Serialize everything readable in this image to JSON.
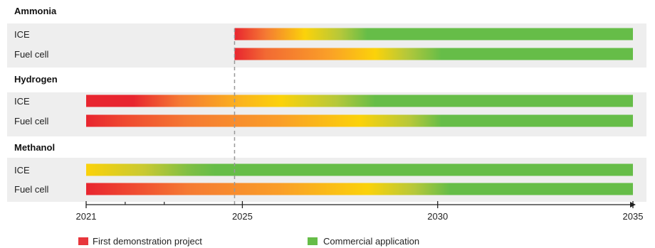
{
  "chart_data": {
    "type": "gantt-gradient",
    "title": "",
    "xlabel": "",
    "ylabel": "",
    "x_range": [
      2021,
      2035
    ],
    "x_ticks": [
      2021,
      2025,
      2030,
      2035
    ],
    "x_tick_labels": [
      "2021",
      "2025",
      "2030",
      "2035"
    ],
    "x_minor_ticks": [
      2022,
      2023
    ],
    "reference_line_x": 2024.8,
    "groups": [
      {
        "name": "Ammonia",
        "rows": [
          {
            "label": "ICE",
            "start": 2024.8,
            "end": 2035,
            "stops": [
              [
                2024.8,
                "#e8252f"
              ],
              [
                2025.6,
                "#f57a33"
              ],
              [
                2026.6,
                "#fbd20a"
              ],
              [
                2027.5,
                "#b6c83a"
              ],
              [
                2028.2,
                "#66bd48"
              ],
              [
                2035,
                "#66bd48"
              ]
            ]
          },
          {
            "label": "Fuel cell",
            "start": 2024.8,
            "end": 2035,
            "stops": [
              [
                2024.8,
                "#e8252f"
              ],
              [
                2025.6,
                "#f26a33"
              ],
              [
                2027.2,
                "#fa9f28"
              ],
              [
                2028.4,
                "#fbd20a"
              ],
              [
                2029.2,
                "#b6c83a"
              ],
              [
                2030.1,
                "#66bd48"
              ],
              [
                2035,
                "#66bd48"
              ]
            ]
          }
        ]
      },
      {
        "name": "Hydrogen",
        "rows": [
          {
            "label": "ICE",
            "start": 2021,
            "end": 2035,
            "stops": [
              [
                2021,
                "#e8252f"
              ],
              [
                2022.2,
                "#e8252f"
              ],
              [
                2023.4,
                "#f57a33"
              ],
              [
                2025.0,
                "#fbb51c"
              ],
              [
                2026.0,
                "#fbd20a"
              ],
              [
                2027.4,
                "#b6c83a"
              ],
              [
                2028.4,
                "#66bd48"
              ],
              [
                2035,
                "#66bd48"
              ]
            ]
          },
          {
            "label": "Fuel cell",
            "start": 2021,
            "end": 2035,
            "stops": [
              [
                2021,
                "#e8252f"
              ],
              [
                2022.0,
                "#ef4a31"
              ],
              [
                2023.6,
                "#f57a33"
              ],
              [
                2026.0,
                "#fa9f28"
              ],
              [
                2028.0,
                "#fbd20a"
              ],
              [
                2029.3,
                "#b6c83a"
              ],
              [
                2030.1,
                "#66bd48"
              ],
              [
                2035,
                "#66bd48"
              ]
            ]
          }
        ]
      },
      {
        "name": "Methanol",
        "rows": [
          {
            "label": "ICE",
            "start": 2021,
            "end": 2035,
            "stops": [
              [
                2021,
                "#fbd20a"
              ],
              [
                2022.5,
                "#c8c932"
              ],
              [
                2023.6,
                "#80bf44"
              ],
              [
                2024.3,
                "#66bd48"
              ],
              [
                2035,
                "#66bd48"
              ]
            ]
          },
          {
            "label": "Fuel cell",
            "start": 2021,
            "end": 2035,
            "stops": [
              [
                2021,
                "#e8252f"
              ],
              [
                2022.2,
                "#ef4a31"
              ],
              [
                2023.6,
                "#f57a33"
              ],
              [
                2026.0,
                "#fa9f28"
              ],
              [
                2028.2,
                "#fbd20a"
              ],
              [
                2029.4,
                "#b6c83a"
              ],
              [
                2030.3,
                "#66bd48"
              ],
              [
                2035,
                "#66bd48"
              ]
            ]
          }
        ]
      }
    ],
    "legend": [
      {
        "label": "First demonstration project",
        "color": "#e8363c"
      },
      {
        "label": "Commercial application",
        "color": "#66bd48"
      }
    ],
    "legend_position": "bottom-left",
    "grid": false
  },
  "colors": {
    "row_band": "#eeeeee",
    "axis": "#222222",
    "reference_line": "#999999"
  }
}
